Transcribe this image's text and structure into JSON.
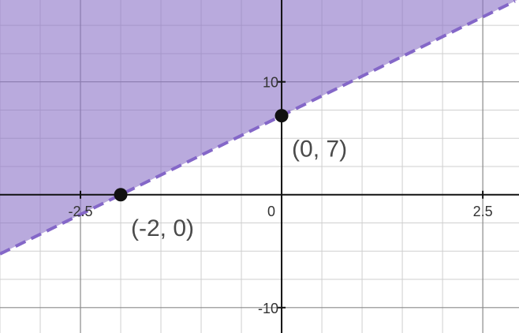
{
  "chart_data": {
    "type": "line",
    "inequality_region": "above",
    "line_style": "dashed",
    "line": {
      "x": [
        -3.5,
        2.9
      ],
      "y": [
        -5.25,
        17.15
      ]
    },
    "xlim": [
      -3.5,
      2.95
    ],
    "ylim": [
      -12.25,
      17.25
    ],
    "grid": true,
    "minor_grid": true,
    "x_ticks": [
      {
        "value": -2.5,
        "label": "-2.5"
      },
      {
        "value": 2.5,
        "label": "2.5"
      }
    ],
    "y_ticks": [
      {
        "value": 10,
        "label": "10"
      },
      {
        "value": -10,
        "label": "-10"
      }
    ],
    "origin_label": "0",
    "points": [
      {
        "x": -2,
        "y": 0,
        "label": "(-2, 0)"
      },
      {
        "x": 0,
        "y": 7,
        "label": "(0, 7)"
      }
    ],
    "colors": {
      "fill": "#8b71c7",
      "line": "#8467c8",
      "point": "#111111",
      "minor_grid": "#cfcfcf",
      "major_grid": "#8a8a8a",
      "axis": "#111111"
    }
  }
}
